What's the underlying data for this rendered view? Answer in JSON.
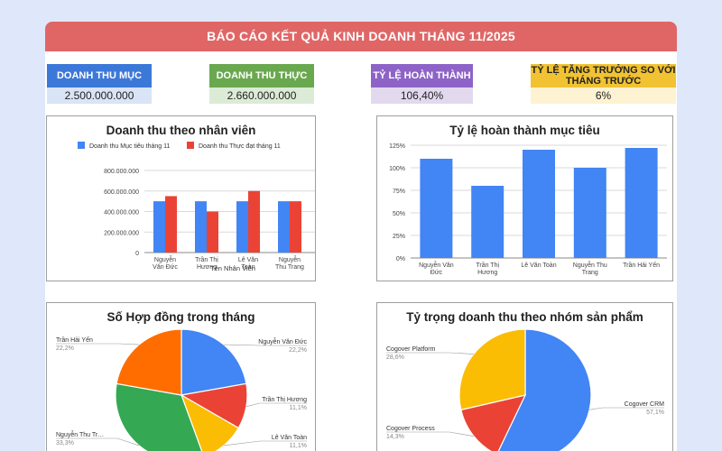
{
  "header": {
    "title": "BÁO CÁO KẾT QUẢ KINH DOANH THÁNG 11/2025"
  },
  "kpis": [
    {
      "label": "DOANH THU MỤC TIÊU",
      "value": "2.500.000.000",
      "color": "#3c78d8",
      "value_bg": "#d9e4f6"
    },
    {
      "label": "DOANH THU THỰC ĐẠT",
      "value": "2.660.000.000",
      "color": "#6aa84f",
      "value_bg": "#dcebd6"
    },
    {
      "label": "TỶ LỆ HOÀN THÀNH",
      "value": "106,40%",
      "color": "#8e63c7",
      "value_bg": "#e2d9ef"
    },
    {
      "label_line1": "TỶ LỆ TĂNG TRƯỞNG SO VỚI",
      "label_line2": "THÁNG TRƯỚC",
      "value": "6%",
      "color": "#f1c232",
      "value_bg": "#fdf3d2"
    }
  ],
  "chart_data": [
    {
      "type": "bar",
      "title": "Doanh thu theo nhân viên",
      "xlabel": "Tên Nhân Viên",
      "ylabel": "",
      "categories": [
        [
          "Nguyễn",
          "Văn Đức"
        ],
        [
          "Trần Thị",
          "Hương"
        ],
        [
          "Lê Văn",
          "Toàn"
        ],
        [
          "Nguyễn",
          "Thu Trang"
        ],
        [
          "Trần Hải",
          "Yến"
        ]
      ],
      "series": [
        {
          "name": "Doanh thu Mục tiêu tháng 11",
          "color": "#4285f4",
          "values": [
            500000000,
            500000000,
            500000000,
            500000000,
            500000000
          ]
        },
        {
          "name": "Doanh thu Thực đạt tháng 11",
          "color": "#ea4335",
          "values": [
            550000000,
            400000000,
            600000000,
            500000000,
            610000000
          ]
        }
      ],
      "ylim": [
        0,
        800000000
      ],
      "yticks": [
        "0",
        "200.000.000",
        "400.000.000",
        "600.000.000",
        "800.000.000"
      ],
      "legend": "top"
    },
    {
      "type": "bar",
      "title": "Tỷ lệ hoàn thành mục tiêu",
      "categories": [
        [
          "Nguyễn Văn",
          "Đức"
        ],
        [
          "Trần Thị",
          "Hương"
        ],
        [
          "Lê Văn Toàn"
        ],
        [
          "Nguyễn Thu",
          "Trang"
        ],
        [
          "Trần Hải Yến"
        ]
      ],
      "series": [
        {
          "color": "#4285f4",
          "values": [
            110,
            80,
            120,
            100,
            122
          ]
        }
      ],
      "ylim": [
        0,
        125
      ],
      "yticks": [
        "0%",
        "25%",
        "50%",
        "75%",
        "100%",
        "125%"
      ]
    },
    {
      "type": "pie",
      "title": "Số Hợp đồng trong tháng",
      "slices": [
        {
          "label": "Nguyễn Văn Đức",
          "pct": "22,2%",
          "value": 22.2,
          "color": "#4285f4"
        },
        {
          "label": "Trần Thị Hương",
          "pct": "11,1%",
          "value": 11.1,
          "color": "#ea4335"
        },
        {
          "label": "Lê Văn Toàn",
          "pct": "11,1%",
          "value": 11.1,
          "color": "#fbbc04"
        },
        {
          "label": "Nguyễn Thu Tr…",
          "pct": "33,3%",
          "value": 33.3,
          "color": "#34a853"
        },
        {
          "label": "Trần Hải Yến",
          "pct": "22,2%",
          "value": 22.2,
          "color": "#ff6d01"
        }
      ]
    },
    {
      "type": "pie",
      "title": "Tỷ trọng doanh thu theo nhóm sản phẩm",
      "slices": [
        {
          "label": "Cogover CRM",
          "pct": "57,1%",
          "value": 57.1,
          "color": "#4285f4"
        },
        {
          "label": "Cogover Process",
          "pct": "14,3%",
          "value": 14.3,
          "color": "#ea4335"
        },
        {
          "label": "Cogover Platform",
          "pct": "28,6%",
          "value": 28.6,
          "color": "#fbbc04"
        }
      ]
    }
  ]
}
